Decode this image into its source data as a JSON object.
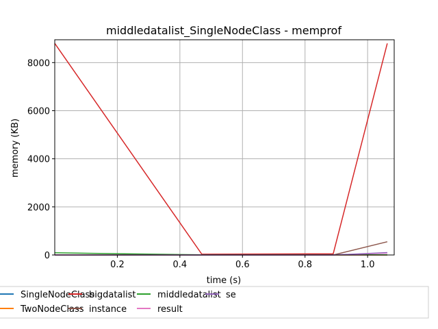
{
  "chart_data": {
    "type": "line",
    "title": "middledatalist_SingleNodeClass - memprof",
    "xlabel": "time (s)",
    "ylabel": "memory (KB)",
    "xlim": [
      0.0,
      1.085
    ],
    "ylim": [
      0,
      8950
    ],
    "x_ticks": [
      0.2,
      0.4,
      0.6,
      0.8,
      1.0
    ],
    "x_tick_labels": [
      "0.2",
      "0.4",
      "0.6",
      "0.8",
      "1.0"
    ],
    "y_ticks": [
      0,
      2000,
      4000,
      6000,
      8000
    ],
    "y_tick_labels": [
      "0",
      "2000",
      "4000",
      "6000",
      "8000"
    ],
    "grid": true,
    "legend_position": "bottom, outside plot",
    "series": [
      {
        "name": "SingleNodeClass",
        "color": "#1f77b4",
        "x": [
          0.0,
          0.47,
          0.89,
          1.063
        ],
        "y": [
          0,
          0,
          0,
          0
        ]
      },
      {
        "name": "TwoNodeClass",
        "color": "#ff7f0e",
        "x": [
          0.0,
          0.47,
          0.89,
          1.063
        ],
        "y": [
          0,
          0,
          0,
          0
        ]
      },
      {
        "name": "bigdatalist",
        "color": "#d62728",
        "x": [
          0.0,
          0.47,
          0.89,
          1.063
        ],
        "y": [
          8800,
          30,
          50,
          8800
        ]
      },
      {
        "name": "instance",
        "color": "#8c564b",
        "x": [
          0.0,
          0.47,
          0.89,
          1.063
        ],
        "y": [
          0,
          0,
          0,
          550
        ]
      },
      {
        "name": "middledatalist",
        "color": "#2ca02c",
        "x": [
          0.0,
          0.47,
          0.89,
          1.063
        ],
        "y": [
          90,
          5,
          5,
          5
        ]
      },
      {
        "name": "result",
        "color": "#e377c2",
        "x": [
          0.0,
          0.47,
          0.89,
          1.063
        ],
        "y": [
          0,
          0,
          0,
          80
        ]
      },
      {
        "name": "se",
        "color": "#9467bd",
        "x": [
          0.0,
          0.47,
          0.89,
          1.063
        ],
        "y": [
          0,
          0,
          0,
          100
        ]
      }
    ]
  }
}
